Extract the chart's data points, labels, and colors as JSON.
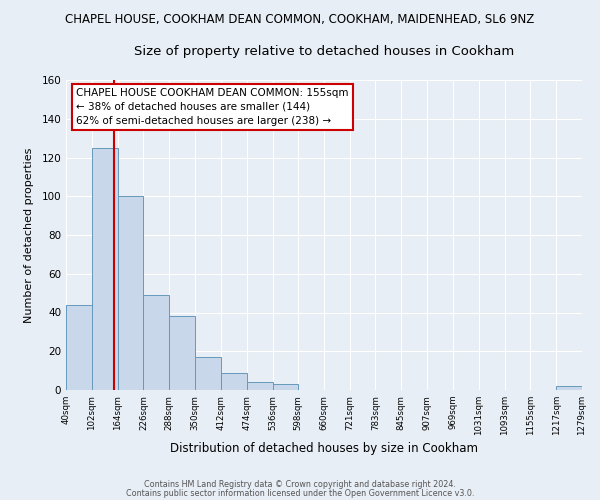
{
  "title_line1": "CHAPEL HOUSE, COOKHAM DEAN COMMON, COOKHAM, MAIDENHEAD, SL6 9NZ",
  "title_line2": "Size of property relative to detached houses in Cookham",
  "xlabel": "Distribution of detached houses by size in Cookham",
  "ylabel": "Number of detached properties",
  "bar_edges": [
    40,
    102,
    164,
    226,
    288,
    350,
    412,
    474,
    536,
    598,
    660,
    721,
    783,
    845,
    907,
    969,
    1031,
    1093,
    1155,
    1217,
    1279
  ],
  "bar_heights": [
    44,
    125,
    100,
    49,
    38,
    17,
    9,
    4,
    3,
    0,
    0,
    0,
    0,
    0,
    0,
    0,
    0,
    0,
    0,
    2
  ],
  "bar_color": "#c8d8ea",
  "bar_edge_color": "#6699bb",
  "property_line_x": 155,
  "property_line_color": "#cc0000",
  "annotation_title": "CHAPEL HOUSE COOKHAM DEAN COMMON: 155sqm",
  "annotation_line1": "← 38% of detached houses are smaller (144)",
  "annotation_line2": "62% of semi-detached houses are larger (238) →",
  "annotation_box_color": "#ffffff",
  "annotation_box_edgecolor": "#cc0000",
  "xlim_left": 40,
  "xlim_right": 1279,
  "ylim_top": 160,
  "tick_labels": [
    "40sqm",
    "102sqm",
    "164sqm",
    "226sqm",
    "288sqm",
    "350sqm",
    "412sqm",
    "474sqm",
    "536sqm",
    "598sqm",
    "660sqm",
    "721sqm",
    "783sqm",
    "845sqm",
    "907sqm",
    "969sqm",
    "1031sqm",
    "1093sqm",
    "1155sqm",
    "1217sqm",
    "1279sqm"
  ],
  "footer_line1": "Contains HM Land Registry data © Crown copyright and database right 2024.",
  "footer_line2": "Contains public sector information licensed under the Open Government Licence v3.0.",
  "background_color": "#e8eef5",
  "plot_bg_color": "#e8eef5",
  "title_fontsize": 8.5,
  "subtitle_fontsize": 9.5,
  "yticks": [
    0,
    20,
    40,
    60,
    80,
    100,
    120,
    140,
    160
  ]
}
